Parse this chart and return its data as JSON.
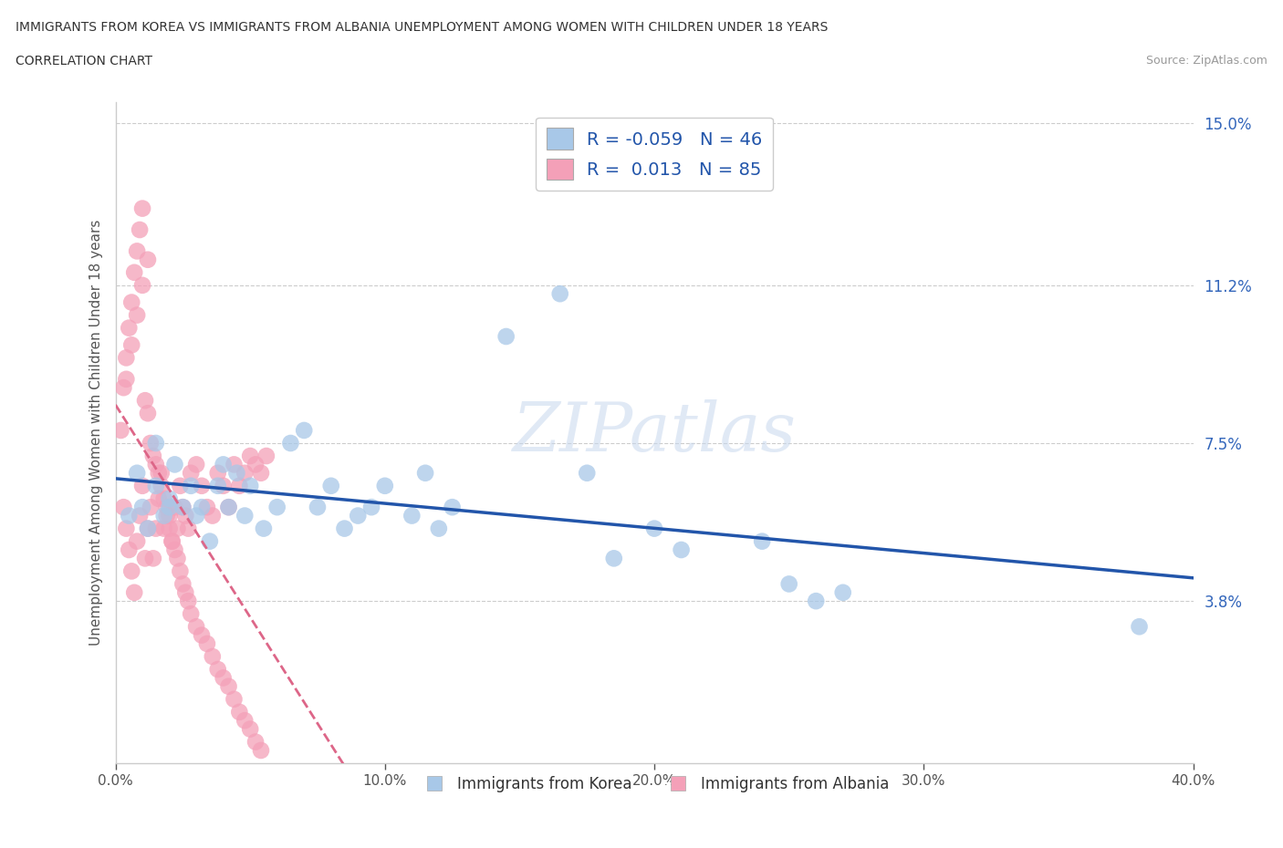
{
  "title_line1": "IMMIGRANTS FROM KOREA VS IMMIGRANTS FROM ALBANIA UNEMPLOYMENT AMONG WOMEN WITH CHILDREN UNDER 18 YEARS",
  "title_line2": "CORRELATION CHART",
  "source_text": "Source: ZipAtlas.com",
  "ylabel": "Unemployment Among Women with Children Under 18 years",
  "xlim": [
    0,
    0.4
  ],
  "ylim": [
    0,
    0.155
  ],
  "yticks": [
    0.038,
    0.075,
    0.112,
    0.15
  ],
  "ytick_labels": [
    "3.8%",
    "7.5%",
    "11.2%",
    "15.0%"
  ],
  "xticks": [
    0.0,
    0.1,
    0.2,
    0.3,
    0.4
  ],
  "xtick_labels": [
    "0.0%",
    "10.0%",
    "20.0%",
    "30.0%",
    "40.0%"
  ],
  "korea_color": "#a8c8e8",
  "albania_color": "#f4a0b8",
  "korea_line_color": "#2255aa",
  "albania_line_color": "#dd6688",
  "korea_R": -0.059,
  "korea_N": 46,
  "albania_R": 0.013,
  "albania_N": 85,
  "watermark": "ZIPatlas",
  "korea_x": [
    0.005,
    0.008,
    0.01,
    0.012,
    0.015,
    0.015,
    0.018,
    0.02,
    0.022,
    0.025,
    0.028,
    0.03,
    0.032,
    0.035,
    0.038,
    0.04,
    0.042,
    0.045,
    0.048,
    0.05,
    0.055,
    0.06,
    0.065,
    0.07,
    0.075,
    0.08,
    0.085,
    0.09,
    0.095,
    0.1,
    0.11,
    0.115,
    0.12,
    0.125,
    0.145,
    0.165,
    0.175,
    0.185,
    0.2,
    0.21,
    0.24,
    0.25,
    0.26,
    0.27,
    0.38,
    0.02
  ],
  "korea_y": [
    0.058,
    0.068,
    0.06,
    0.055,
    0.075,
    0.065,
    0.058,
    0.062,
    0.07,
    0.06,
    0.065,
    0.058,
    0.06,
    0.052,
    0.065,
    0.07,
    0.06,
    0.068,
    0.058,
    0.065,
    0.055,
    0.06,
    0.075,
    0.078,
    0.06,
    0.065,
    0.055,
    0.058,
    0.06,
    0.065,
    0.058,
    0.068,
    0.055,
    0.06,
    0.1,
    0.11,
    0.068,
    0.048,
    0.055,
    0.05,
    0.052,
    0.042,
    0.038,
    0.04,
    0.032,
    0.06
  ],
  "albania_x": [
    0.003,
    0.004,
    0.005,
    0.006,
    0.007,
    0.008,
    0.009,
    0.01,
    0.011,
    0.012,
    0.013,
    0.014,
    0.015,
    0.016,
    0.017,
    0.018,
    0.019,
    0.02,
    0.021,
    0.022,
    0.023,
    0.024,
    0.025,
    0.026,
    0.027,
    0.028,
    0.03,
    0.032,
    0.034,
    0.036,
    0.038,
    0.04,
    0.042,
    0.044,
    0.046,
    0.048,
    0.05,
    0.052,
    0.054,
    0.056,
    0.002,
    0.003,
    0.004,
    0.005,
    0.006,
    0.007,
    0.008,
    0.009,
    0.01,
    0.011,
    0.012,
    0.013,
    0.014,
    0.015,
    0.016,
    0.017,
    0.018,
    0.019,
    0.02,
    0.021,
    0.022,
    0.023,
    0.024,
    0.025,
    0.026,
    0.027,
    0.028,
    0.03,
    0.032,
    0.034,
    0.036,
    0.038,
    0.04,
    0.042,
    0.044,
    0.046,
    0.048,
    0.05,
    0.052,
    0.054,
    0.004,
    0.006,
    0.008,
    0.01,
    0.012
  ],
  "albania_y": [
    0.06,
    0.055,
    0.05,
    0.045,
    0.04,
    0.052,
    0.058,
    0.065,
    0.048,
    0.055,
    0.06,
    0.048,
    0.055,
    0.062,
    0.068,
    0.055,
    0.06,
    0.058,
    0.052,
    0.06,
    0.055,
    0.065,
    0.06,
    0.058,
    0.055,
    0.068,
    0.07,
    0.065,
    0.06,
    0.058,
    0.068,
    0.065,
    0.06,
    0.07,
    0.065,
    0.068,
    0.072,
    0.07,
    0.068,
    0.072,
    0.078,
    0.088,
    0.095,
    0.102,
    0.108,
    0.115,
    0.12,
    0.125,
    0.13,
    0.085,
    0.082,
    0.075,
    0.072,
    0.07,
    0.068,
    0.065,
    0.062,
    0.058,
    0.055,
    0.052,
    0.05,
    0.048,
    0.045,
    0.042,
    0.04,
    0.038,
    0.035,
    0.032,
    0.03,
    0.028,
    0.025,
    0.022,
    0.02,
    0.018,
    0.015,
    0.012,
    0.01,
    0.008,
    0.005,
    0.003,
    0.09,
    0.098,
    0.105,
    0.112,
    0.118
  ]
}
